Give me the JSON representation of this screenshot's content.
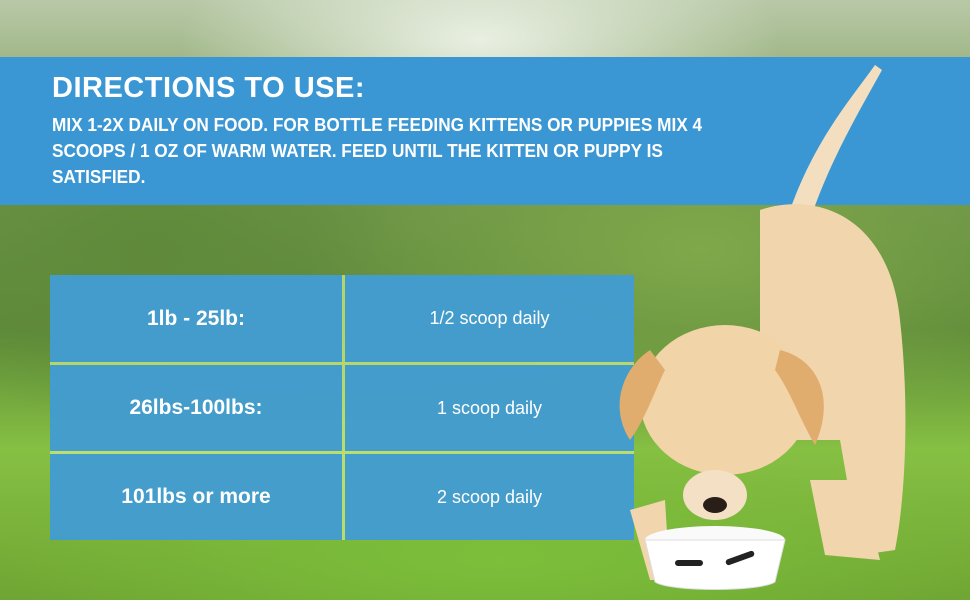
{
  "header": {
    "title": "DIRECTIONS TO USE:",
    "text": "MIX 1-2X DAILY ON FOOD. FOR BOTTLE FEEDING KITTENS OR PUPPIES MIX 4 SCOOPS / 1 OZ OF WARM WATER. FEED UNTIL THE KITTEN OR PUPPY IS SATISFIED."
  },
  "dosage_table": {
    "rows": [
      {
        "weight": "1lb - 25lb:",
        "dose": "1/2 scoop daily"
      },
      {
        "weight": "26lbs-100lbs:",
        "dose": "1 scoop daily"
      },
      {
        "weight": "101lbs or more",
        "dose": "2 scoop daily"
      }
    ]
  },
  "colors": {
    "banner": "#3a97d4",
    "text": "#ffffff"
  },
  "image": {
    "subject": "puppy-eating-from-bowl-icon"
  }
}
